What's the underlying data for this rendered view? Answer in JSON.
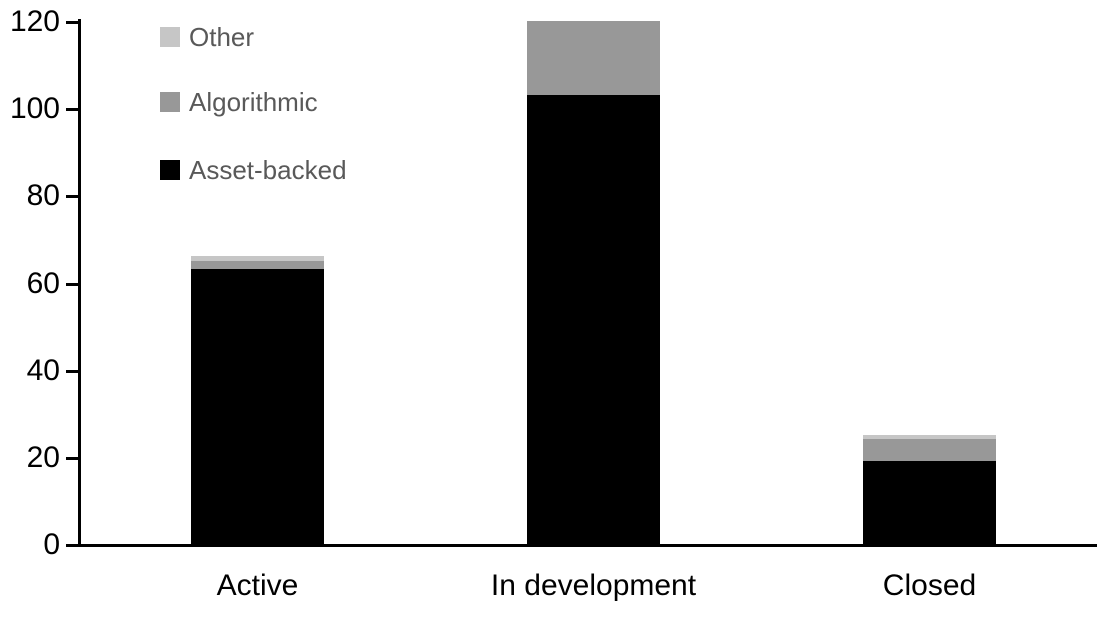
{
  "chart_data": {
    "type": "bar",
    "stacked": true,
    "title": "",
    "xlabel": "",
    "ylabel": "",
    "categories": [
      "Active",
      "In development",
      "Closed"
    ],
    "series": [
      {
        "name": "Asset-backed",
        "color": "#000000",
        "values": [
          63,
          103,
          19
        ]
      },
      {
        "name": "Algorithmic",
        "color": "#989898",
        "values": [
          2,
          17,
          5
        ]
      },
      {
        "name": "Other",
        "color": "#C6C6C6",
        "values": [
          1,
          0,
          1
        ]
      }
    ],
    "ylim": [
      0,
      120
    ],
    "yticks": [
      0,
      20,
      40,
      60,
      80,
      100,
      120
    ],
    "grid": false,
    "legend_position": "top-left",
    "legend_order": [
      "Other",
      "Algorithmic",
      "Asset-backed"
    ],
    "colors": {
      "axis": "#000000",
      "tick_label_text": "#000000",
      "category_label_text": "#000000",
      "legend_text": "#595959",
      "background": "#FFFFFF"
    }
  }
}
